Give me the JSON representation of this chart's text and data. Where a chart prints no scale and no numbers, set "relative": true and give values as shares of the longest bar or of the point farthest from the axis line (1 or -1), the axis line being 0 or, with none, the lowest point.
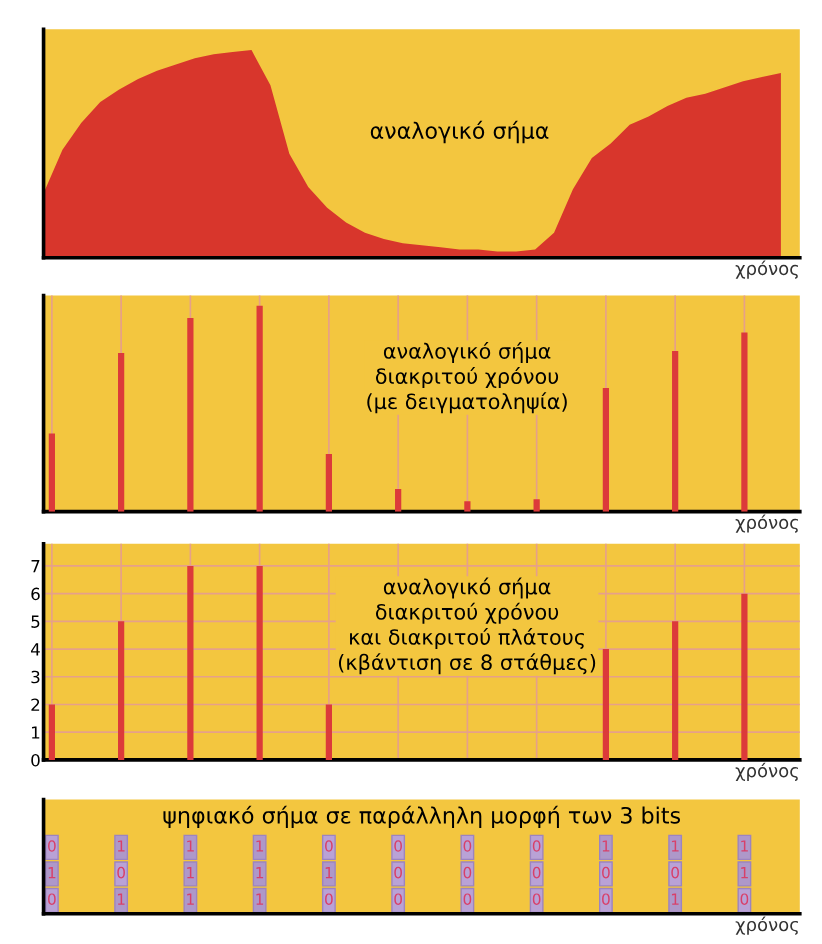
{
  "chart_data": [
    {
      "type": "area",
      "title": "αναλογικό σήμα",
      "xlabel": "χρόνος",
      "relative": true,
      "tick_labels": false,
      "color": "#d8362c",
      "categories": [
        null,
        null,
        null,
        null,
        null,
        null,
        null,
        null,
        null,
        null,
        null,
        null,
        null,
        null,
        null,
        null,
        null,
        null,
        null,
        null,
        null,
        null,
        null,
        null,
        null,
        null,
        null,
        null,
        null,
        null,
        null,
        null,
        null,
        null,
        null,
        null,
        null,
        null,
        null,
        null
      ],
      "values": [
        0.31,
        0.52,
        0.65,
        0.75,
        0.81,
        0.86,
        0.9,
        0.93,
        0.96,
        0.98,
        0.99,
        1.0,
        0.83,
        0.5,
        0.34,
        0.24,
        0.17,
        0.12,
        0.09,
        0.07,
        0.06,
        0.05,
        0.04,
        0.04,
        0.03,
        0.03,
        0.04,
        0.12,
        0.33,
        0.48,
        0.55,
        0.64,
        0.68,
        0.73,
        0.77,
        0.79,
        0.82,
        0.85,
        0.87,
        0.89
      ]
    },
    {
      "type": "bar",
      "title": "αναλογικό σήμα\nδιακριτού χρόνου\n(με δειγματοληψία)",
      "xlabel": "χρόνος",
      "relative": true,
      "tick_labels": false,
      "grid": "x",
      "color": "#dc3a3a",
      "categories": [
        null,
        null,
        null,
        null,
        null,
        null,
        null,
        null,
        null,
        null,
        null
      ],
      "values": [
        0.38,
        0.77,
        0.94,
        1.0,
        0.28,
        0.11,
        0.05,
        0.06,
        0.6,
        0.78,
        0.87
      ]
    },
    {
      "type": "bar",
      "title": "αναλογικό σήμα\nδιακριτού χρόνου\nκαι διακριτού πλάτους\n(κβάντιση σε 8 στάθμες)",
      "xlabel": "χρόνος",
      "tick_labels": "y",
      "grid": true,
      "color": "#dc3a3a",
      "categories": [
        null,
        null,
        null,
        null,
        null,
        null,
        null,
        null,
        null,
        null,
        null
      ],
      "ylim": [
        0,
        7.8
      ],
      "yticks": [
        0,
        1,
        2,
        3,
        4,
        5,
        6,
        7
      ],
      "values": [
        2,
        5,
        7,
        7,
        2,
        0,
        0,
        0,
        4,
        5,
        6
      ]
    },
    {
      "type": "heatmap",
      "title": "ψηφιακό σήμα σε παράλληλη μορφή των 3 bits",
      "xlabel": "χρόνος",
      "tick_labels": false,
      "color": "#b9a2d6",
      "categories": [
        null,
        null,
        null,
        null,
        null,
        null,
        null,
        null,
        null,
        null,
        null
      ],
      "y_categories": [
        null,
        null,
        null
      ],
      "cells": [
        [
          0,
          1,
          1,
          1,
          0,
          0,
          0,
          0,
          1,
          1,
          1
        ],
        [
          1,
          0,
          1,
          1,
          1,
          0,
          0,
          0,
          0,
          0,
          1
        ],
        [
          0,
          1,
          1,
          1,
          0,
          0,
          0,
          0,
          0,
          1,
          0
        ]
      ],
      "cell_labels": [
        [
          "0",
          "1",
          "1",
          "1",
          "0",
          "0",
          "0",
          "0",
          "1",
          "1",
          "1"
        ],
        [
          "1",
          "0",
          "1",
          "1",
          "1",
          "0",
          "0",
          "0",
          "0",
          "0",
          "1"
        ],
        [
          "0",
          "1",
          "1",
          "1",
          "0",
          "0",
          "0",
          "0",
          "0",
          "1",
          "0"
        ]
      ]
    }
  ]
}
